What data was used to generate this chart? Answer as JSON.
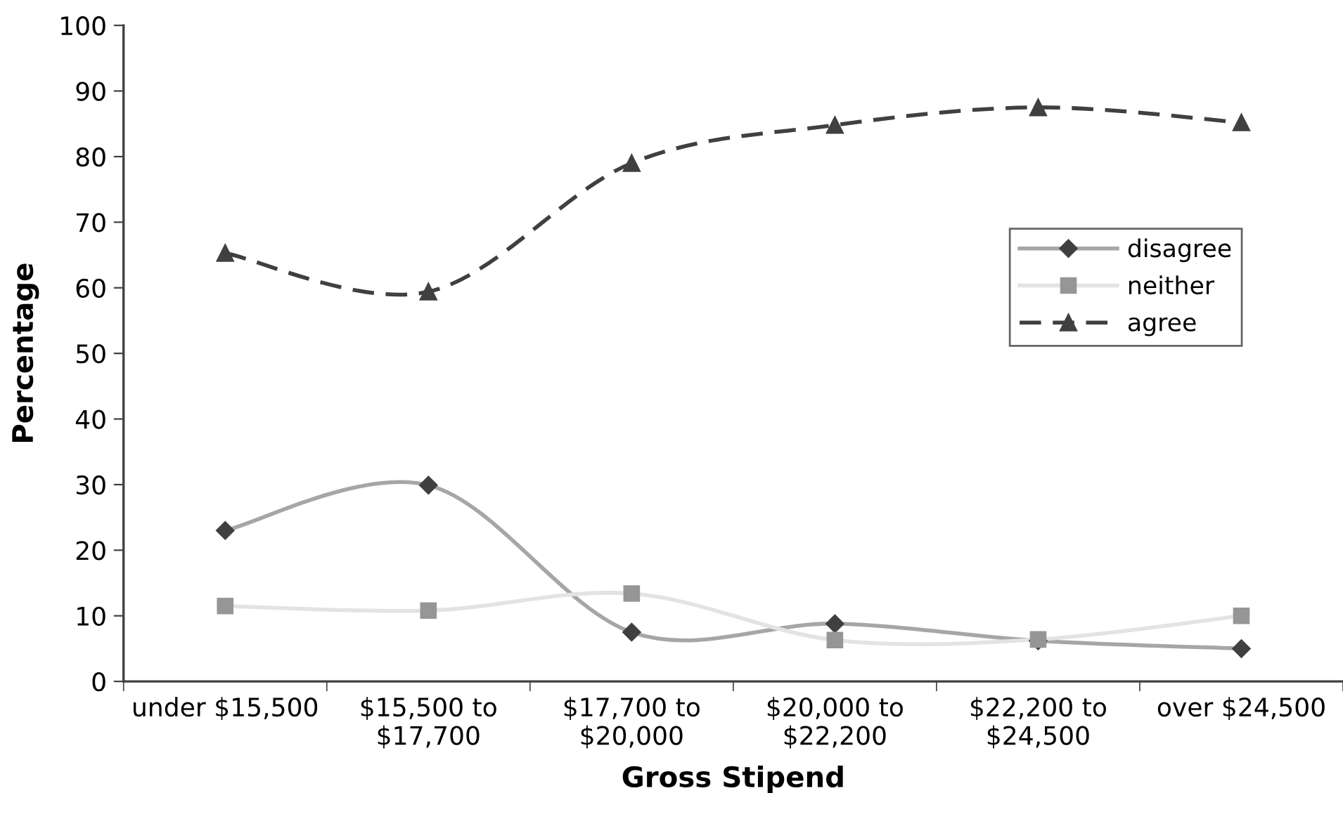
{
  "chart_data": {
    "type": "line",
    "xlabel": "Gross Stipend",
    "ylabel": "Percentage",
    "categories": [
      "under $15,500",
      "$15,500 to\n$17,700",
      "$17,700 to\n$20,000",
      "$20,000 to\n$22,200",
      "$22,200 to\n$24,500",
      "over $24,500"
    ],
    "ylim": [
      0,
      100
    ],
    "yticks": [
      0,
      10,
      20,
      30,
      40,
      50,
      60,
      70,
      80,
      90,
      100
    ],
    "grid": false,
    "legend": "right",
    "series": [
      {
        "name": "disagree",
        "color": "#a6a6a6",
        "colors": [
          "#404040",
          "#404040",
          "#404040",
          "#404040",
          "#404040",
          "#404040"
        ],
        "marker": "diamond",
        "line_style": "solid",
        "values": [
          23.0,
          29.9,
          7.5,
          8.8,
          6.2,
          5.0
        ]
      },
      {
        "name": "neither",
        "color": "#e3e3e3",
        "colors": [
          "#969696",
          "#969696",
          "#969696",
          "#969696",
          "#969696",
          "#969696"
        ],
        "marker": "square",
        "line_style": "solid",
        "values": [
          11.5,
          10.8,
          13.4,
          6.3,
          6.4,
          10.0
        ]
      },
      {
        "name": "agree",
        "color": "#404040",
        "colors": [
          "#404040",
          "#404040",
          "#404040",
          "#404040",
          "#404040",
          "#404040"
        ],
        "marker": "triangle",
        "line_style": "dashed",
        "values": [
          65.3,
          59.4,
          79.0,
          84.8,
          87.5,
          85.2
        ]
      }
    ]
  }
}
